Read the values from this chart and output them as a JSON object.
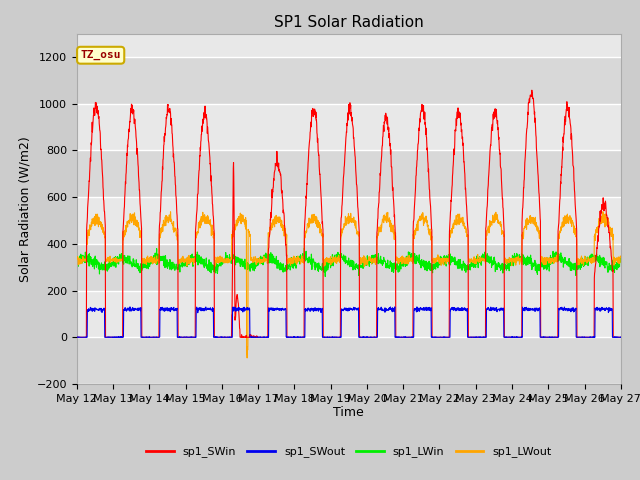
{
  "title": "SP1 Solar Radiation",
  "xlabel": "Time",
  "ylabel": "Solar Radiation (W/m2)",
  "ylim": [
    -200,
    1300
  ],
  "yticks": [
    -200,
    0,
    200,
    400,
    600,
    800,
    1000,
    1200
  ],
  "x_tick_days": [
    12,
    13,
    14,
    15,
    16,
    17,
    18,
    19,
    20,
    21,
    22,
    23,
    24,
    25,
    26,
    27
  ],
  "annotation_text": "TZ_osu",
  "annotation_bg": "#FFFFCC",
  "annotation_border": "#CCAA00",
  "line_colors": {
    "sp1_SWin": "#FF0000",
    "sp1_SWout": "#0000EE",
    "sp1_LWin": "#00EE00",
    "sp1_LWout": "#FFA500"
  },
  "bg_color": "#CCCCCC",
  "plot_bg_light": "#E8E8E8",
  "plot_bg_dark": "#D8D8D8",
  "grid_color": "#FFFFFF"
}
